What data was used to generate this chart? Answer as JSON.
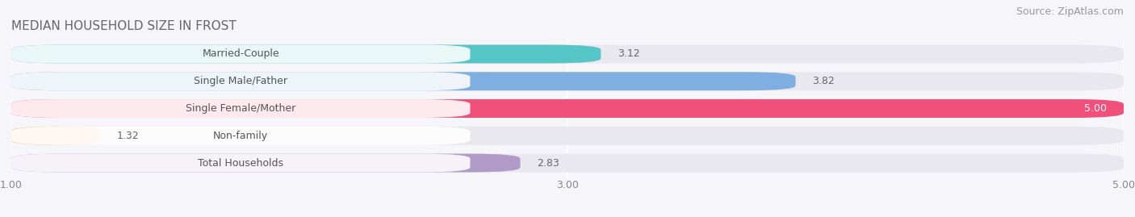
{
  "title": "MEDIAN HOUSEHOLD SIZE IN FROST",
  "source": "Source: ZipAtlas.com",
  "categories": [
    "Married-Couple",
    "Single Male/Father",
    "Single Female/Mother",
    "Non-family",
    "Total Households"
  ],
  "values": [
    3.12,
    3.82,
    5.0,
    1.32,
    2.83
  ],
  "bar_colors": [
    "#56c5c5",
    "#7faee0",
    "#f0507a",
    "#f5c890",
    "#b09ac8"
  ],
  "xmin": 1.0,
  "xmax": 5.0,
  "xticks": [
    1.0,
    3.0,
    5.0
  ],
  "xtick_labels": [
    "1.00",
    "3.00",
    "5.00"
  ],
  "background_color": "#f5f5fa",
  "bar_bg_color": "#e8e8ee",
  "label_bg_color": "#ffffff",
  "title_fontsize": 11,
  "label_fontsize": 9,
  "value_fontsize": 9,
  "source_fontsize": 9,
  "bar_height": 0.68,
  "bar_gap": 0.32
}
